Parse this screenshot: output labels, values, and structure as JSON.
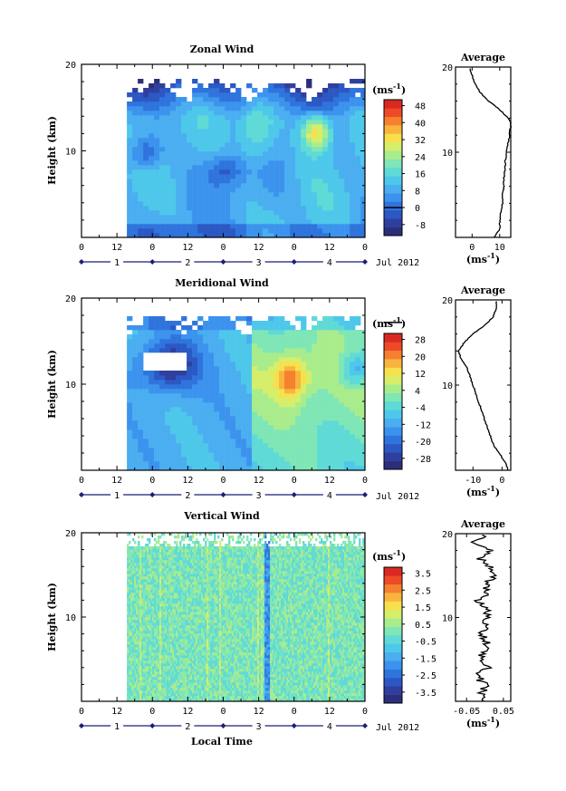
{
  "figure": {
    "date_label": "Jul 2012",
    "x_axis_title": "Local Time",
    "y_axis_title": "Height (km)",
    "unit_label": "(ms",
    "unit_exp": "-1",
    "avg_unit_label": "(ms",
    "avg_title": "Average",
    "colormap": [
      "#2b2f7a",
      "#2f3f9e",
      "#2c58c4",
      "#2f74dc",
      "#3c93ee",
      "#4aaef0",
      "#4ec8ea",
      "#5fdad6",
      "#7fe6b6",
      "#a9ec8c",
      "#d6ee6a",
      "#f6e04e",
      "#f9b43c",
      "#f5802f",
      "#ee4a27",
      "#d92a22"
    ],
    "colors": {
      "missing": "#ffffff",
      "ink": "#000000",
      "date_axis": "#1a1f7a"
    }
  },
  "chart_data": [
    {
      "type": "heatmap",
      "title": "Zonal Wind",
      "ylabel": "Height (km)",
      "ylim": [
        0,
        20
      ],
      "yticks": [
        10,
        20
      ],
      "x_tick_labels": [
        "0",
        "12",
        "0",
        "12",
        "0",
        "12",
        "0",
        "12",
        "0"
      ],
      "day_labels": [
        "1",
        "2",
        "3",
        "4"
      ],
      "colorbar": {
        "labels": [
          "48",
          "40",
          "32",
          "24",
          "16",
          "8",
          "0",
          "-8"
        ],
        "zero_line_at": "0"
      },
      "average": {
        "title": "Average",
        "xticks": [
          "0",
          "10"
        ],
        "xlim": [
          -6,
          14
        ],
        "height": [
          0,
          1,
          2,
          3,
          4,
          5,
          6,
          7,
          8,
          9,
          10,
          11,
          12,
          13,
          13.5,
          14,
          15,
          16,
          17,
          18,
          19,
          20
        ],
        "value": [
          8,
          10,
          10,
          10.5,
          11,
          11,
          11.5,
          11.5,
          12,
          12,
          12.5,
          13,
          13.5,
          14,
          14,
          13,
          10,
          6,
          3,
          1,
          0,
          -1
        ]
      }
    },
    {
      "type": "heatmap",
      "title": "Meridional Wind",
      "ylabel": "Height (km)",
      "ylim": [
        0,
        20
      ],
      "yticks": [
        10,
        20
      ],
      "x_tick_labels": [
        "0",
        "12",
        "0",
        "12",
        "0",
        "12",
        "0",
        "12",
        "0"
      ],
      "day_labels": [
        "1",
        "2",
        "3",
        "4"
      ],
      "colorbar": {
        "labels": [
          "28",
          "20",
          "12",
          "4",
          "-4",
          "-12",
          "-20",
          "-28"
        ],
        "zero_line_at": "0"
      },
      "average": {
        "title": "Average",
        "xticks": [
          "-10",
          "0"
        ],
        "xlim": [
          -16,
          3
        ],
        "height": [
          0,
          1,
          2,
          3,
          4,
          5,
          6,
          7,
          8,
          9,
          10,
          11,
          12,
          13,
          14,
          15,
          16,
          17,
          18,
          19,
          20
        ],
        "value": [
          2,
          1,
          -1,
          -3,
          -4,
          -5,
          -6,
          -7,
          -8,
          -9,
          -10,
          -11,
          -12,
          -14,
          -15,
          -13,
          -10,
          -6,
          -3,
          -2,
          -2
        ]
      }
    },
    {
      "type": "heatmap",
      "title": "Vertical Wind",
      "ylabel": "Height (km)",
      "ylim": [
        0,
        20
      ],
      "yticks": [
        10,
        20
      ],
      "xlabel": "Local Time",
      "x_tick_labels": [
        "0",
        "12",
        "0",
        "12",
        "0",
        "12",
        "0",
        "12",
        "0"
      ],
      "day_labels": [
        "1",
        "2",
        "3",
        "4"
      ],
      "colorbar": {
        "labels": [
          "3.5",
          "2.5",
          "1.5",
          "0.5",
          "-0.5",
          "-1.5",
          "-2.5",
          "-3.5"
        ]
      },
      "average": {
        "title": "Average",
        "xticks": [
          "-0.05",
          "0.05"
        ],
        "xlim": [
          -0.08,
          0.07
        ],
        "height": [
          0,
          1,
          2,
          3,
          4,
          5,
          6,
          7,
          8,
          9,
          10,
          11,
          12,
          13,
          14,
          15,
          16,
          17,
          18,
          19,
          20
        ],
        "value": [
          0.0,
          -0.01,
          0.0,
          -0.02,
          0.01,
          -0.01,
          0.0,
          0.01,
          -0.01,
          0.0,
          0.01,
          0.0,
          -0.02,
          0.01,
          0.0,
          0.03,
          0.01,
          -0.01,
          0.02,
          -0.03,
          0.0
        ]
      }
    }
  ]
}
